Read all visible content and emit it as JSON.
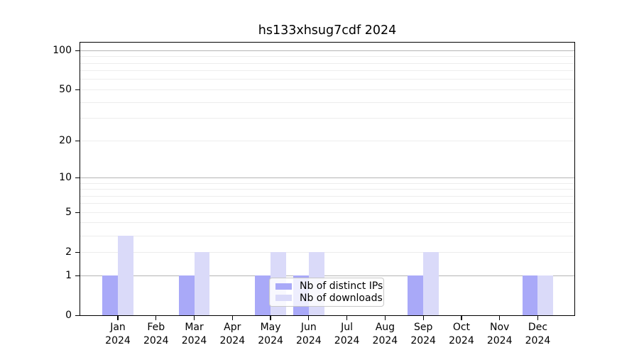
{
  "title": "hs133xhsug7cdf 2024",
  "legend": {
    "items": [
      {
        "label": "Nb of distinct IPs",
        "series": "distinct_ips"
      },
      {
        "label": "Nb of downloads",
        "series": "downloads"
      }
    ]
  },
  "colors": {
    "distinct_ips": "#a9a9f8",
    "downloads": "#dadaf9",
    "grid_major": "#b4b4b4",
    "grid_minor": "#ededed",
    "axis": "#000000",
    "legend_border": "#c8c8c8"
  },
  "chart_data": {
    "type": "bar",
    "title": "hs133xhsug7cdf 2024",
    "categories": [
      "Jan",
      "Feb",
      "Mar",
      "Apr",
      "May",
      "Jun",
      "Jul",
      "Aug",
      "Sep",
      "Oct",
      "Nov",
      "Dec"
    ],
    "x_tick_year": "2024",
    "series": [
      {
        "name": "Nb of distinct IPs",
        "color_key": "distinct_ips",
        "values": [
          1,
          0,
          1,
          0,
          1,
          1,
          0,
          0,
          1,
          0,
          0,
          1
        ]
      },
      {
        "name": "Nb of downloads",
        "color_key": "downloads",
        "values": [
          3,
          0,
          2,
          0,
          2,
          2,
          0,
          0,
          2,
          0,
          0,
          1
        ]
      }
    ],
    "yscale": "log1p",
    "ylim": [
      0,
      114
    ],
    "yticks": [
      0,
      1,
      2,
      5,
      10,
      20,
      50,
      100
    ],
    "major_gridlines": [
      1,
      10,
      100
    ],
    "minor_gridlines": [
      2,
      3,
      4,
      5,
      6,
      7,
      8,
      9,
      20,
      30,
      40,
      50,
      60,
      70,
      80,
      90
    ],
    "grid": "on",
    "legend_position": "lower center"
  }
}
